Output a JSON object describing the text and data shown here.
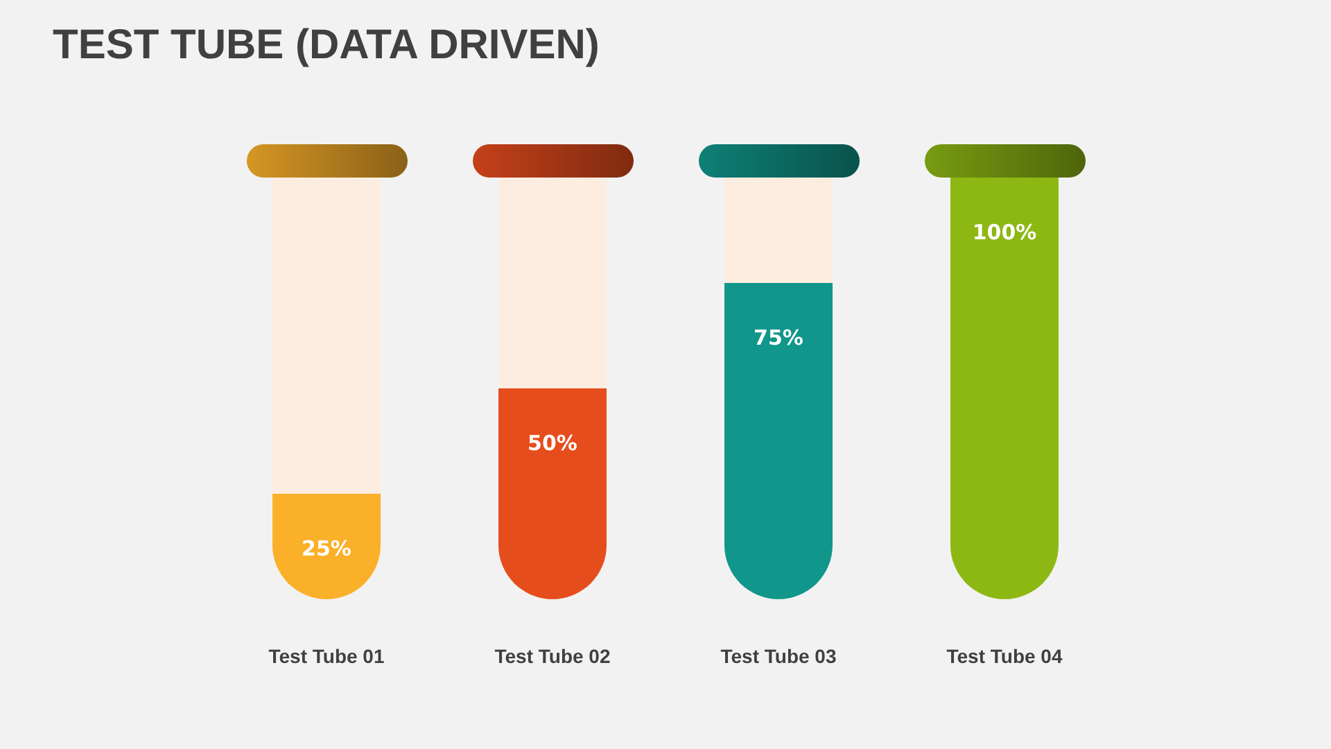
{
  "chart_data": {
    "type": "bar",
    "title": "TEST TUBE (DATA DRIVEN)",
    "categories": [
      "Test Tube 01",
      "Test Tube 02",
      "Test Tube 03",
      "Test Tube 04"
    ],
    "values": [
      25,
      50,
      75,
      100
    ],
    "colors": [
      "#fbb02a",
      "#e64d1d",
      "#11968b",
      "#8db814"
    ],
    "value_labels": [
      "25%",
      "50%",
      "75%",
      "100%"
    ],
    "ylim": [
      0,
      100
    ],
    "tick_labels": "x"
  }
}
